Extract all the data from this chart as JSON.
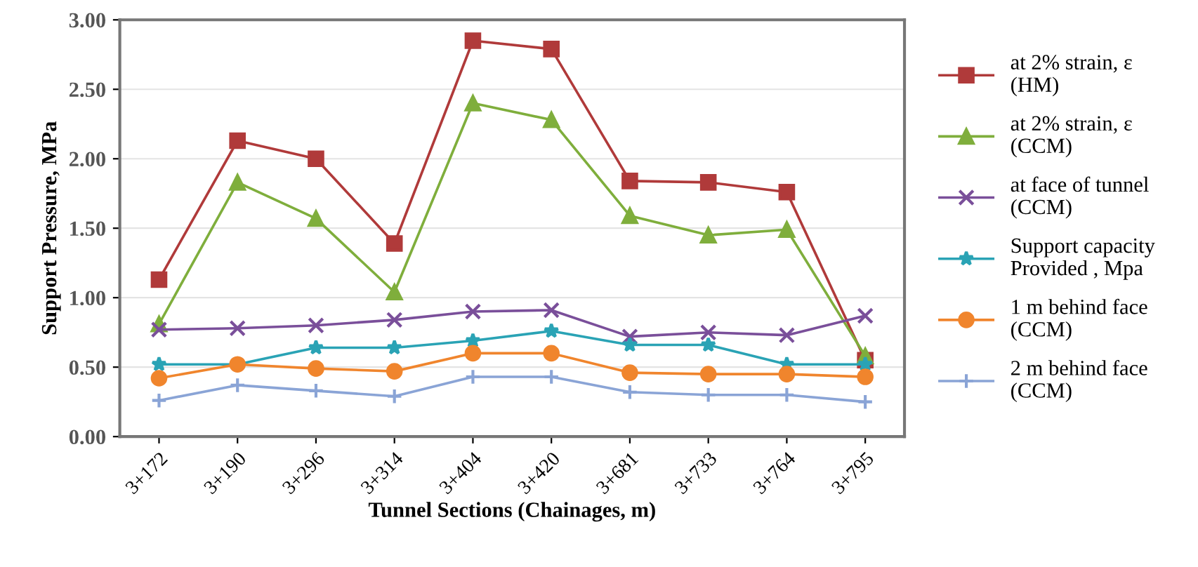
{
  "chart_data": {
    "type": "line",
    "xlabel": "Tunnel Sections (Chainages, m)",
    "ylabel": "Support Pressure, MPa",
    "categories": [
      "3+172",
      "3+190",
      "3+296",
      "3+314",
      "3+404",
      "3+420",
      "3+681",
      "3+733",
      "3+764",
      "3+795"
    ],
    "series": [
      {
        "name": "at 2% strain, ε\n(HM)",
        "color": "#b03a3a",
        "marker": "square",
        "values": [
          1.13,
          2.13,
          2.0,
          1.39,
          2.85,
          2.79,
          1.84,
          1.83,
          1.76,
          0.55
        ]
      },
      {
        "name": "at 2% strain, ε\n(CCM)",
        "color": "#7fae3c",
        "marker": "triangle",
        "values": [
          0.81,
          1.83,
          1.57,
          1.04,
          2.4,
          2.28,
          1.59,
          1.45,
          1.49,
          0.58
        ]
      },
      {
        "name": "at face of tunnel\n(CCM)",
        "color": "#7a4f9a",
        "marker": "cross",
        "values": [
          0.77,
          0.78,
          0.8,
          0.84,
          0.9,
          0.91,
          0.72,
          0.75,
          0.73,
          0.87
        ]
      },
      {
        "name": "Support capacity\nProvided , Mpa",
        "color": "#2aa3b5",
        "marker": "star",
        "values": [
          0.52,
          0.52,
          0.64,
          0.64,
          0.69,
          0.76,
          0.66,
          0.66,
          0.52,
          0.52
        ]
      },
      {
        "name": "1 m behind face\n(CCM)",
        "color": "#f0852d",
        "marker": "circle",
        "values": [
          0.42,
          0.52,
          0.49,
          0.47,
          0.6,
          0.6,
          0.46,
          0.45,
          0.45,
          0.43
        ]
      },
      {
        "name": "2 m behind face\n(CCM)",
        "color": "#8aa4d6",
        "marker": "plus",
        "values": [
          0.26,
          0.37,
          0.33,
          0.29,
          0.43,
          0.43,
          0.32,
          0.3,
          0.3,
          0.25
        ]
      }
    ],
    "ylim": [
      0,
      3
    ],
    "yticks": [
      {
        "value": 0,
        "label": "0.00"
      },
      {
        "value": 0.5,
        "label": "0.50"
      },
      {
        "value": 1,
        "label": "1.00"
      },
      {
        "value": 1.5,
        "label": "1.50"
      },
      {
        "value": 2,
        "label": "2.00"
      },
      {
        "value": 2.5,
        "label": "2.50"
      },
      {
        "value": 3,
        "label": "3.00"
      }
    ],
    "grid": "y",
    "legend": "right",
    "line_style": "solid"
  }
}
